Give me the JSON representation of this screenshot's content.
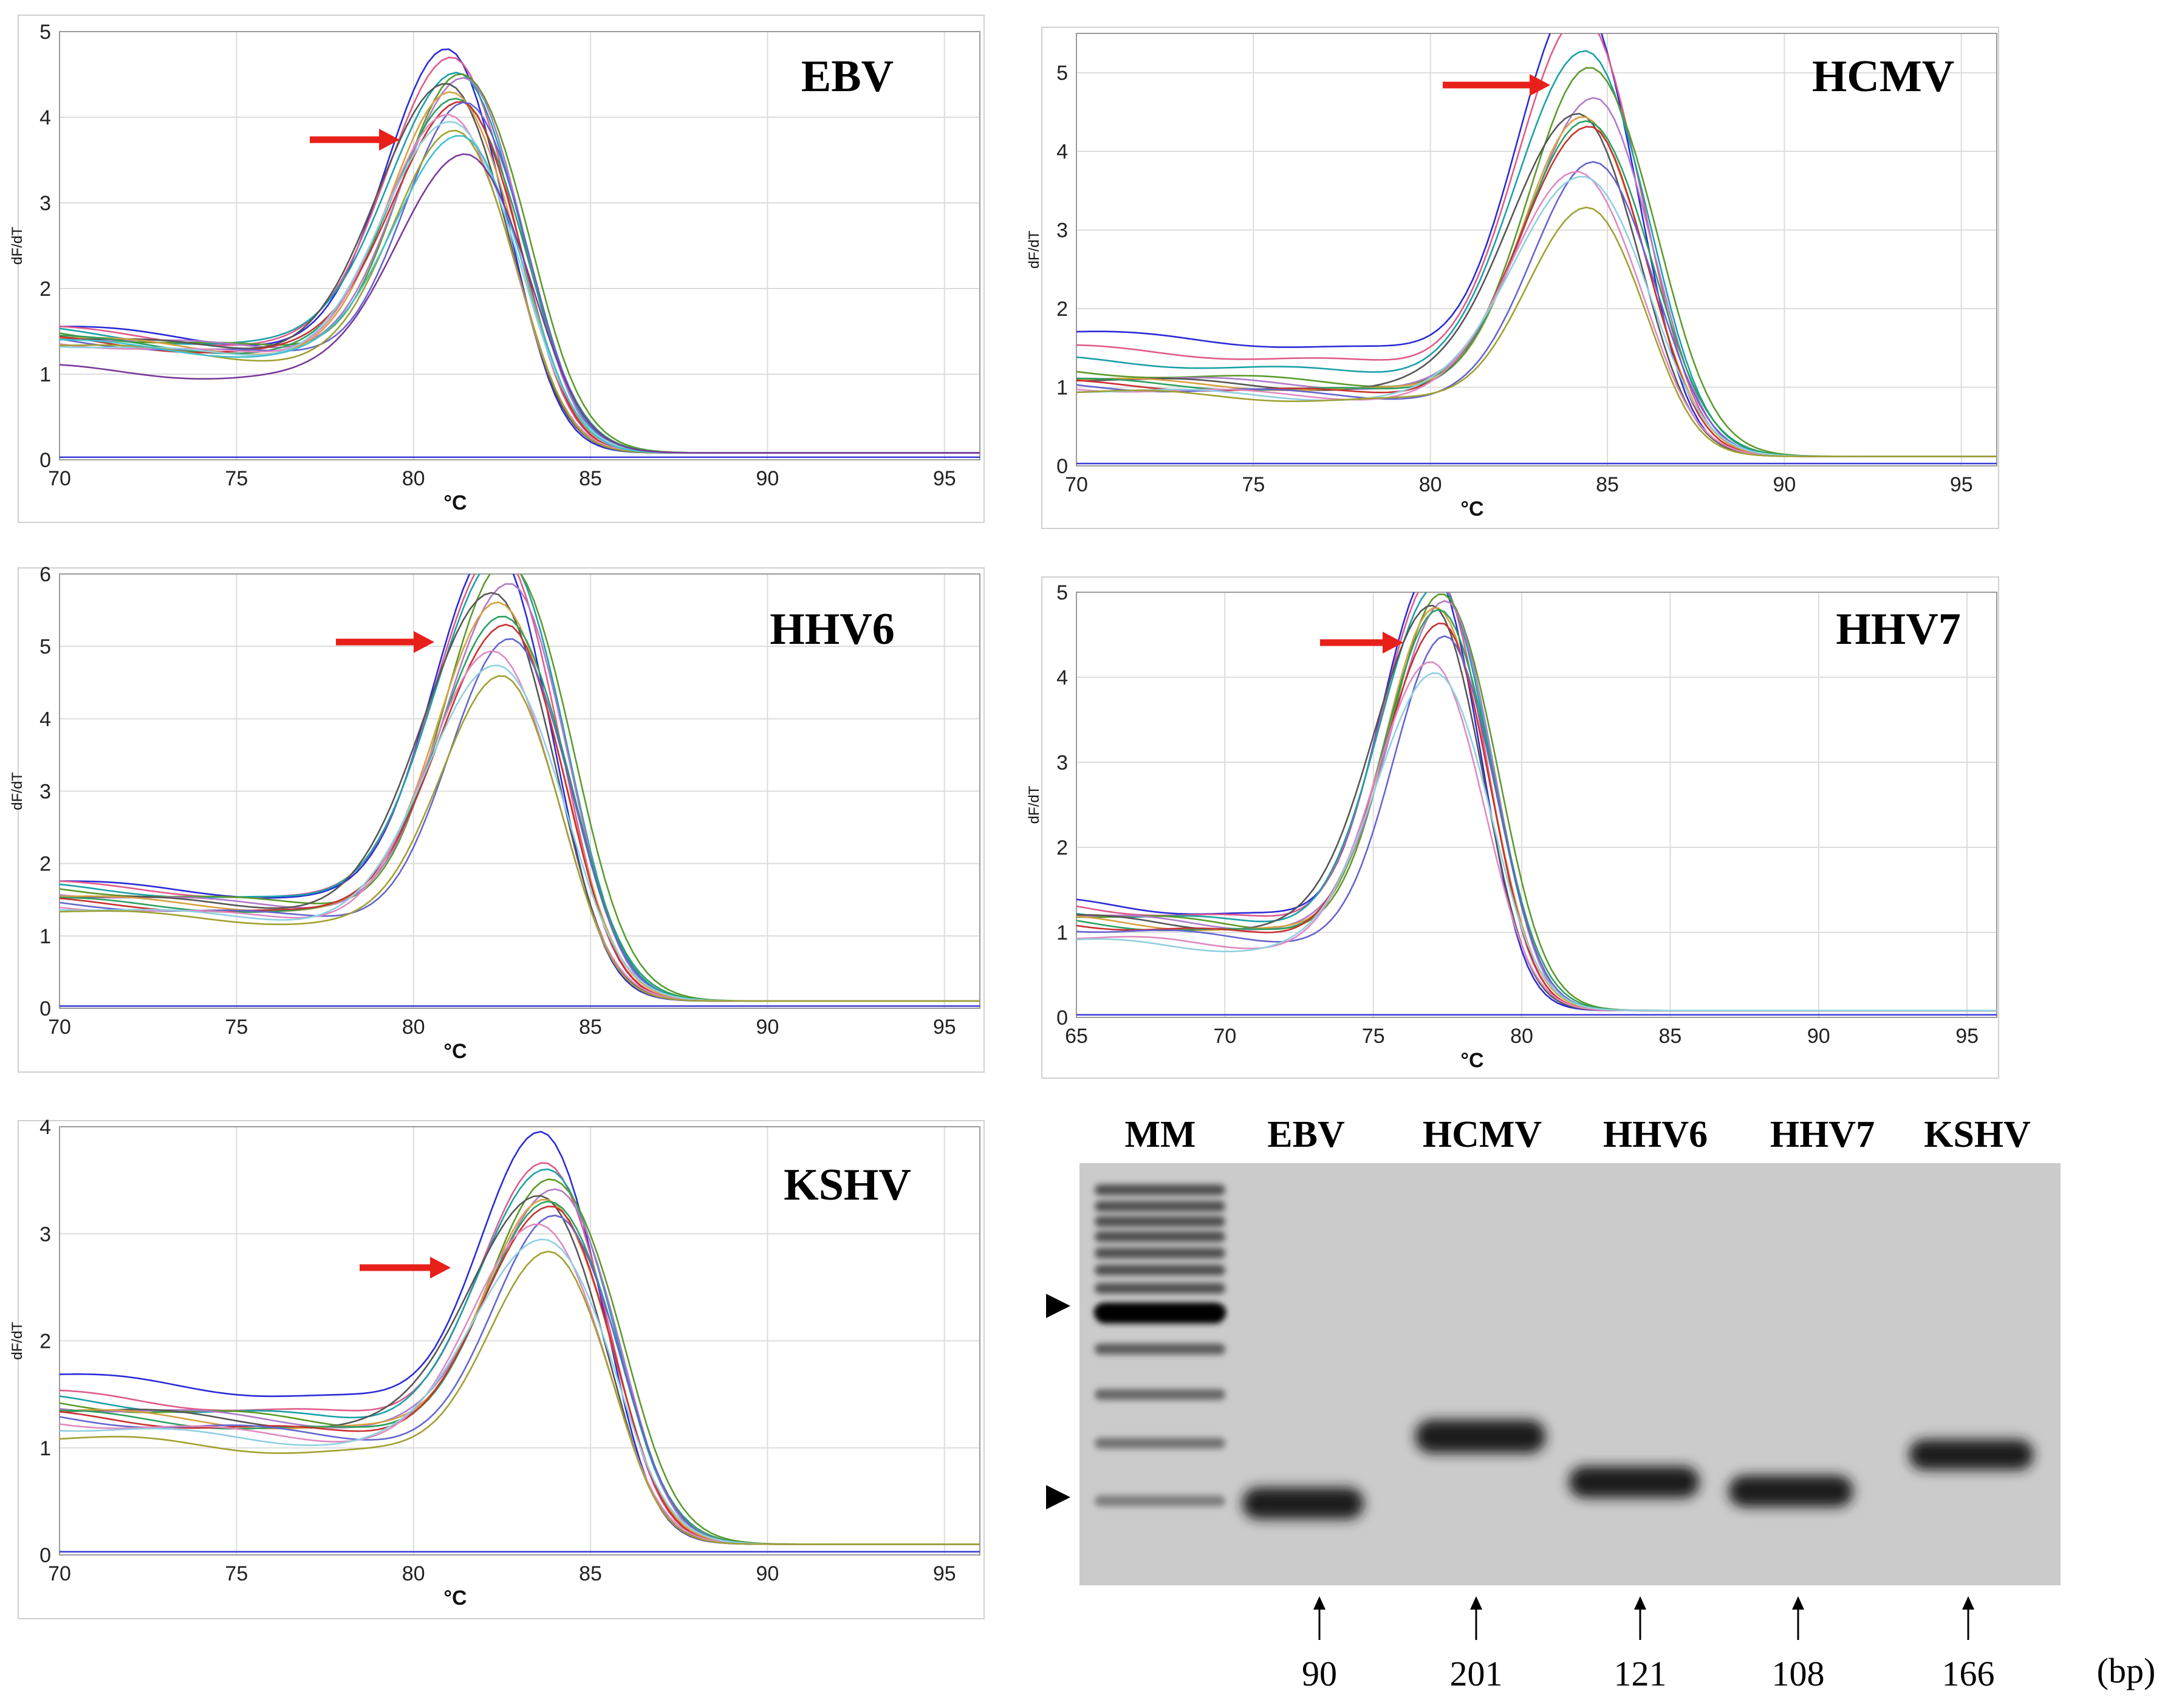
{
  "panels": [
    {
      "chart_data": {
        "type": "line",
        "title": "EBV",
        "xlabel": "°C",
        "ylabel": "dF/dT",
        "xlim": [
          70,
          96
        ],
        "ylim": [
          0,
          5
        ],
        "xticks": [
          70,
          75,
          80,
          85,
          90,
          95
        ],
        "yticks": [
          0,
          1,
          2,
          3,
          4,
          5
        ],
        "grid": true,
        "legend": "none",
        "peak_temperature": 81.2,
        "series_peak_heights": [
          4.32,
          4.25,
          4.05,
          4.0,
          3.95,
          3.9,
          3.85,
          3.8,
          3.75,
          3.7,
          3.55,
          3.48,
          3.42,
          3.38,
          3.25
        ],
        "baseline_at_70": [
          1.55,
          1.52,
          1.5,
          1.48,
          1.47,
          1.45,
          1.43,
          1.42,
          1.4,
          1.4,
          1.38,
          1.36,
          1.35,
          1.38,
          1.07
        ],
        "tail_level": 0.08,
        "annotation": "red arrow pointing to melting peak"
      }
    },
    {
      "chart_data": {
        "type": "line",
        "title": "HCMV",
        "xlabel": "°C",
        "ylabel": "dF/dT",
        "xlim": [
          70,
          96
        ],
        "ylim": [
          0,
          5.5
        ],
        "xticks": [
          70,
          75,
          80,
          85,
          90,
          95
        ],
        "yticks": [
          0,
          1,
          2,
          3,
          4,
          5
        ],
        "grid": true,
        "legend": "none",
        "peak_temperature": 84.4,
        "series_peak_heights": [
          5.42,
          5.2,
          4.82,
          4.7,
          4.35,
          4.15,
          4.08,
          4.0,
          3.95,
          3.55,
          3.45,
          3.4,
          2.98
        ],
        "baseline_at_70": [
          1.7,
          1.5,
          1.35,
          1.2,
          1.15,
          1.12,
          1.1,
          1.08,
          1.05,
          1.02,
          1.0,
          0.98,
          0.95
        ],
        "tail_level": 0.12,
        "annotation": "red arrow pointing to melting peak"
      }
    },
    {
      "chart_data": {
        "type": "line",
        "title": "HHV6",
        "xlabel": "°C",
        "ylabel": "dF/dT",
        "xlim": [
          70,
          96
        ],
        "ylim": [
          0,
          6
        ],
        "xticks": [
          70,
          75,
          80,
          85,
          90,
          95
        ],
        "yticks": [
          0,
          1,
          2,
          3,
          4,
          5,
          6
        ],
        "grid": true,
        "legend": "none",
        "peak_temperature": 82.5,
        "series_peak_heights": [
          5.85,
          5.78,
          5.7,
          5.6,
          5.35,
          5.25,
          5.15,
          4.95,
          4.8,
          4.6,
          4.45,
          4.3,
          4.2
        ],
        "baseline_at_70": [
          1.75,
          1.72,
          1.68,
          1.65,
          1.6,
          1.58,
          1.55,
          1.5,
          1.48,
          1.45,
          1.42,
          1.4,
          1.35
        ],
        "tail_level": 0.1,
        "annotation": "red arrow pointing to melting peak"
      }
    },
    {
      "chart_data": {
        "type": "line",
        "title": "HHV7",
        "xlabel": "°C",
        "ylabel": "dF/dT",
        "xlim": [
          65,
          96
        ],
        "ylim": [
          0,
          5
        ],
        "xticks": [
          65,
          70,
          75,
          80,
          85,
          90,
          95
        ],
        "yticks": [
          0,
          1,
          2,
          3,
          4,
          5
        ],
        "grid": true,
        "legend": "none",
        "peak_temperature": 77.2,
        "series_peak_heights": [
          4.82,
          4.75,
          4.65,
          4.6,
          4.55,
          4.5,
          4.45,
          4.4,
          4.25,
          4.15,
          3.9,
          3.8
        ],
        "baseline_at_65": [
          1.35,
          1.3,
          1.25,
          1.22,
          1.2,
          1.18,
          1.15,
          1.12,
          1.1,
          1.05,
          0.95,
          0.9
        ],
        "tail_level": 0.08,
        "annotation": "red arrow pointing to melting peak"
      }
    },
    {
      "chart_data": {
        "type": "line",
        "title": "KSHV",
        "xlabel": "°C",
        "ylabel": "dF/dT",
        "xlim": [
          70,
          96
        ],
        "ylim": [
          0,
          4
        ],
        "xticks": [
          70,
          75,
          80,
          85,
          90,
          95
        ],
        "yticks": [
          0,
          1,
          2,
          3,
          4
        ],
        "grid": true,
        "legend": "none",
        "peak_temperature": 83.8,
        "series_peak_heights": [
          3.42,
          3.15,
          3.1,
          3.05,
          3.0,
          2.95,
          2.9,
          2.85,
          2.8,
          2.75,
          2.7,
          2.6,
          2.5
        ],
        "baseline_at_70": [
          1.68,
          1.5,
          1.45,
          1.42,
          1.4,
          1.38,
          1.35,
          1.32,
          1.3,
          1.28,
          1.25,
          1.2,
          1.1
        ],
        "tail_level": 0.1,
        "annotation": "red arrow pointing to melting peak"
      }
    }
  ],
  "gel": {
    "lanes": [
      "MM",
      "EBV",
      "HCMV",
      "HHV6",
      "HHV7",
      "KSHV"
    ],
    "product_sizes": [
      "90",
      "201",
      "121",
      "108",
      "166"
    ],
    "unit": "(bp)",
    "marker_arrows": 2
  },
  "colors": {
    "arrow": "#e8201a",
    "grid": "#dcdcdc",
    "gel_background": "#cbcbcb",
    "band": "#1e1e1e"
  }
}
